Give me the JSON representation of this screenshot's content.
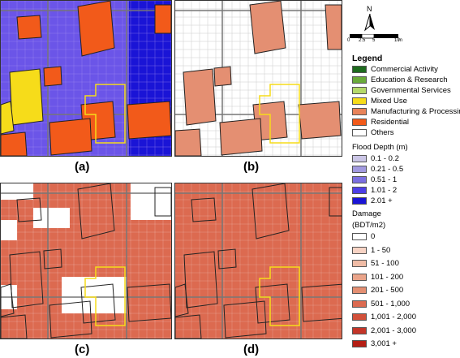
{
  "panels": [
    {
      "label": "(a)",
      "mode": "landuse"
    },
    {
      "label": "(b)",
      "mode": "flood"
    },
    {
      "label": "(c)",
      "mode": "damage_partial"
    },
    {
      "label": "(d)",
      "mode": "damage_full"
    }
  ],
  "north_arrow": {
    "letter": "N"
  },
  "scale_bar": {
    "ticks": [
      "0",
      "2.5",
      "5",
      "10"
    ],
    "unit": "m"
  },
  "legend": {
    "title": "Legend",
    "landuse": [
      {
        "label": "Commercial Activity",
        "color": "#1e6b1e"
      },
      {
        "label": "Education & Research",
        "color": "#6aab3a"
      },
      {
        "label": "Governmental Services",
        "color": "#b5d96a"
      },
      {
        "label": "Mixed Use",
        "color": "#f6dc1a"
      },
      {
        "label": "Manufacturing & Processing",
        "color": "#e8835a"
      },
      {
        "label": "Residential",
        "color": "#f25a1a"
      },
      {
        "label": "Others",
        "color": "#ffffff"
      }
    ],
    "flood_title": "Flood Depth (m)",
    "flood": [
      {
        "label": "0.1 - 0.2",
        "color": "#cbc6e6"
      },
      {
        "label": "0.21 - 0.5",
        "color": "#a29ae0"
      },
      {
        "label": "0.51 - 1",
        "color": "#7b6fe0"
      },
      {
        "label": "1.01 - 2",
        "color": "#4d3fe6"
      },
      {
        "label": "2.01 +",
        "color": "#1a14d6"
      }
    ],
    "damage_title_1": "Damage",
    "damage_title_2": "(BDT/m2)",
    "damage": [
      {
        "label": "0",
        "color": "#ffffff"
      },
      {
        "label": "1 - 50",
        "color": "#f7d3c4"
      },
      {
        "label": "51 - 100",
        "color": "#f0bca6"
      },
      {
        "label": "101 - 200",
        "color": "#eaa48a"
      },
      {
        "label": "201 - 500",
        "color": "#e48f72"
      },
      {
        "label": "501 - 1,000",
        "color": "#dc6a50"
      },
      {
        "label": "1,001 - 2,000",
        "color": "#d2503a"
      },
      {
        "label": "2,001 - 3,000",
        "color": "#c43528"
      },
      {
        "label": "3,001 +",
        "color": "#b51e14"
      }
    ]
  }
}
